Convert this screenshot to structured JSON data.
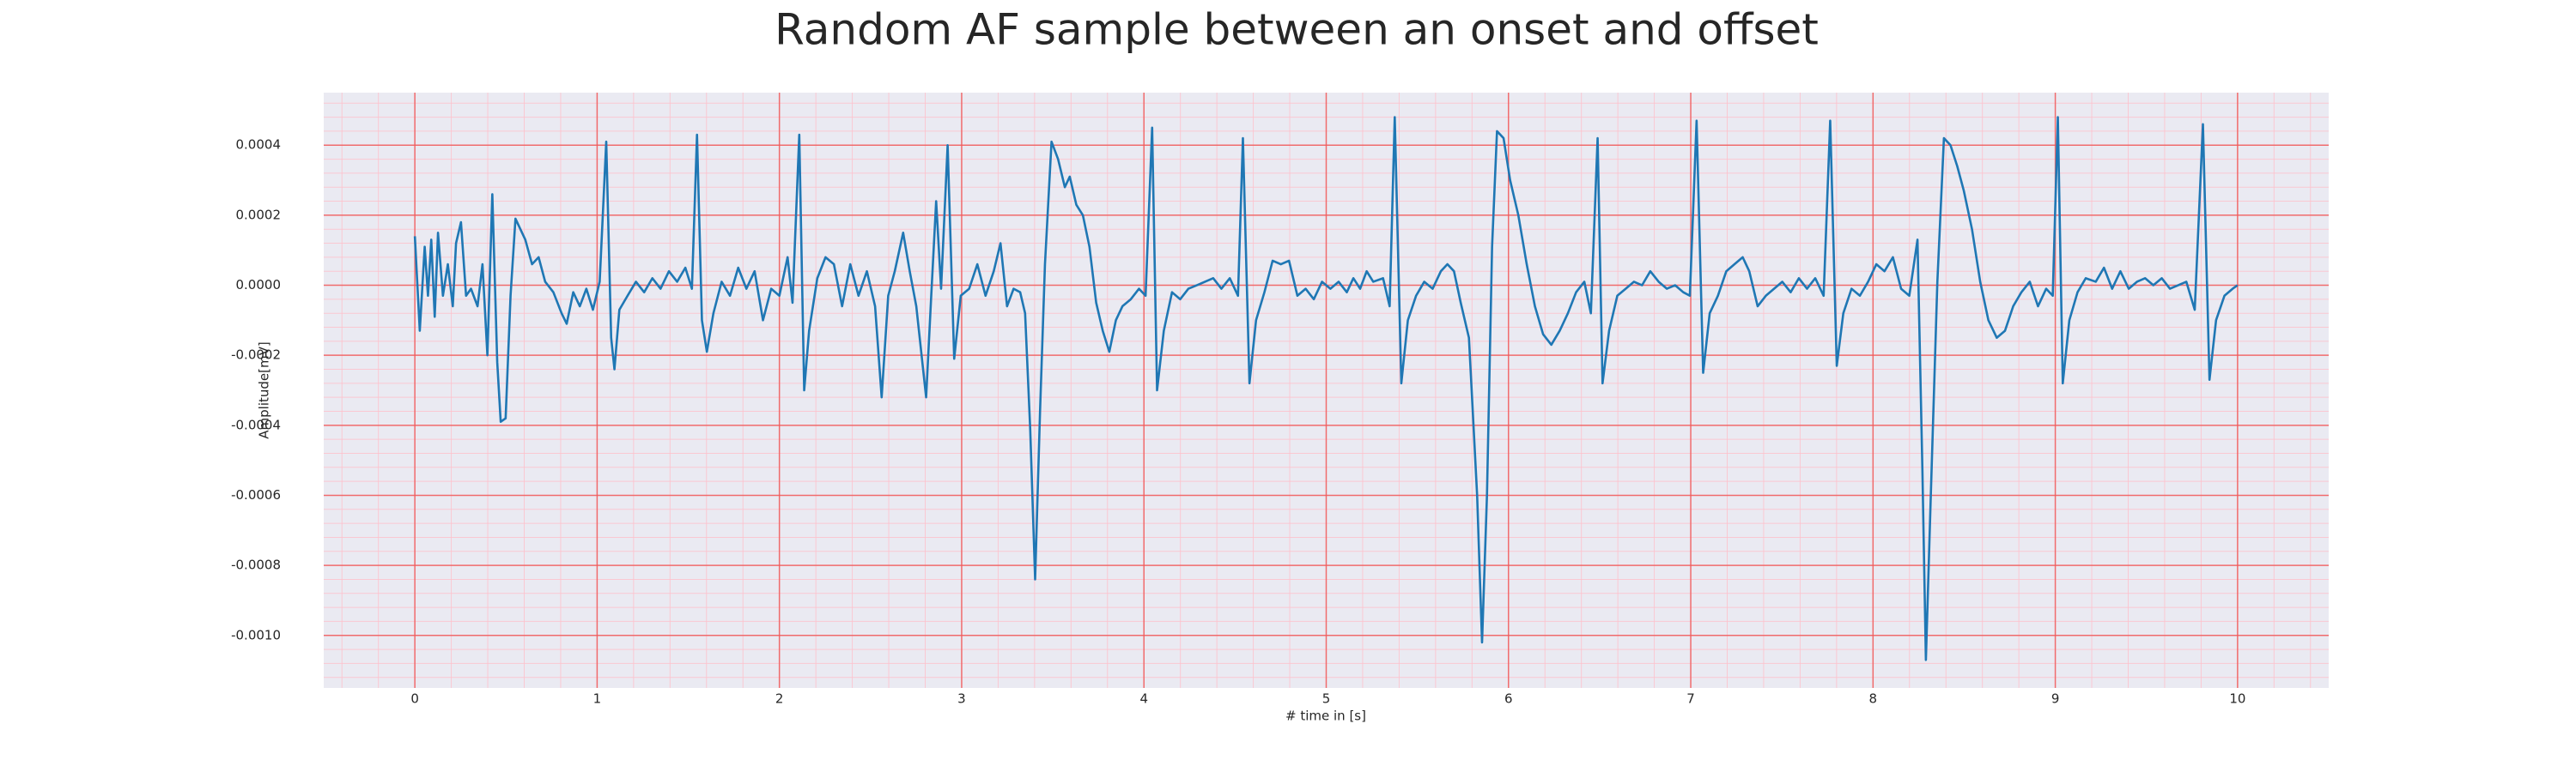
{
  "chart_data": {
    "type": "line",
    "title": "Random AF sample between an onset and offset",
    "xlabel": "# time in [s]",
    "ylabel": "Amplitude[mV]",
    "color": "#1f77b4",
    "grid": true,
    "minor_grid_step": {
      "x": 0.2,
      "y": 4e-05
    },
    "xlim": [
      -0.5,
      10.5
    ],
    "xticks": [
      0,
      1,
      2,
      3,
      4,
      5,
      6,
      7,
      8,
      9,
      10
    ],
    "ylim": [
      -0.00115,
      0.00055
    ],
    "yticks": [
      0.0004,
      0.0002,
      {
        "value": 0,
        "label": "0.0000"
      },
      -0.0002,
      -0.0004,
      -0.0006,
      -0.0008,
      {
        "value": -0.001,
        "label": "-0.0010"
      }
    ],
    "x": [
      0,
      0.027,
      0.054,
      0.072,
      0.09,
      0.109,
      0.127,
      0.154,
      0.181,
      0.208,
      0.226,
      0.253,
      0.281,
      0.308,
      0.344,
      0.371,
      0.398,
      0.425,
      0.452,
      0.471,
      0.498,
      0.525,
      0.552,
      0.579,
      0.606,
      0.643,
      0.679,
      0.715,
      0.76,
      0.805,
      0.833,
      0.869,
      0.905,
      0.941,
      0.977,
      1.014,
      1.05,
      1.077,
      1.095,
      1.122,
      1.167,
      1.213,
      1.258,
      1.303,
      1.348,
      1.394,
      1.439,
      1.484,
      1.52,
      1.548,
      1.575,
      1.602,
      1.638,
      1.683,
      1.729,
      1.774,
      1.819,
      1.864,
      1.91,
      1.955,
      2.0,
      2.045,
      2.072,
      2.109,
      2.136,
      2.163,
      2.208,
      2.253,
      2.299,
      2.344,
      2.389,
      2.434,
      2.48,
      2.525,
      2.561,
      2.597,
      2.633,
      2.679,
      2.715,
      2.751,
      2.805,
      2.833,
      2.86,
      2.887,
      2.923,
      2.959,
      2.995,
      3.041,
      3.086,
      3.131,
      3.176,
      3.213,
      3.249,
      3.285,
      3.321,
      3.348,
      3.376,
      3.403,
      3.43,
      3.457,
      3.493,
      3.529,
      3.566,
      3.593,
      3.629,
      3.665,
      3.701,
      3.738,
      3.774,
      3.81,
      3.846,
      3.882,
      3.928,
      3.973,
      4.009,
      4.045,
      4.072,
      4.109,
      4.154,
      4.199,
      4.244,
      4.29,
      4.335,
      4.38,
      4.425,
      4.471,
      4.516,
      4.543,
      4.579,
      4.615,
      4.661,
      4.706,
      4.751,
      4.796,
      4.842,
      4.887,
      4.932,
      4.977,
      5.023,
      5.068,
      5.113,
      5.149,
      5.186,
      5.222,
      5.258,
      5.312,
      5.348,
      5.376,
      5.412,
      5.448,
      5.493,
      5.538,
      5.584,
      5.629,
      5.665,
      5.701,
      5.738,
      5.783,
      5.828,
      5.855,
      5.882,
      5.91,
      5.937,
      5.973,
      6.009,
      6.054,
      6.1,
      6.145,
      6.19,
      6.235,
      6.281,
      6.326,
      6.371,
      6.416,
      6.452,
      6.489,
      6.516,
      6.552,
      6.597,
      6.643,
      6.688,
      6.733,
      6.778,
      6.824,
      6.869,
      6.914,
      6.959,
      6.995,
      7.032,
      7.068,
      7.104,
      7.149,
      7.195,
      7.24,
      7.285,
      7.321,
      7.367,
      7.412,
      7.457,
      7.502,
      7.548,
      7.593,
      7.638,
      7.683,
      7.729,
      7.765,
      7.801,
      7.837,
      7.882,
      7.928,
      7.973,
      8.018,
      8.063,
      8.109,
      8.154,
      8.199,
      8.244,
      8.271,
      8.29,
      8.317,
      8.353,
      8.389,
      8.425,
      8.462,
      8.498,
      8.543,
      8.588,
      8.633,
      8.679,
      8.724,
      8.769,
      8.814,
      8.86,
      8.905,
      8.95,
      8.986,
      9.014,
      9.041,
      9.077,
      9.122,
      9.167,
      9.222,
      9.267,
      9.312,
      9.357,
      9.403,
      9.448,
      9.493,
      9.538,
      9.584,
      9.629,
      9.674,
      9.719,
      9.765,
      9.81,
      9.846,
      9.882,
      9.928,
      9.973,
      10.0
    ],
    "values": [
      0.00014,
      -0.00013,
      0.00011,
      -3e-05,
      0.00013,
      -9e-05,
      0.00015,
      -3e-05,
      6e-05,
      -6e-05,
      0.00012,
      0.00018,
      -3e-05,
      -1e-05,
      -6e-05,
      6e-05,
      -0.0002,
      0.00026,
      -0.00022,
      -0.00039,
      -0.00038,
      -3e-05,
      0.00019,
      0.00016,
      0.00013,
      6e-05,
      8e-05,
      1e-05,
      -2e-05,
      -8e-05,
      -0.00011,
      -2e-05,
      -6e-05,
      -1e-05,
      -7e-05,
      1e-05,
      0.00041,
      -0.00015,
      -0.00024,
      -7e-05,
      -3e-05,
      1e-05,
      -2e-05,
      2e-05,
      -1e-05,
      4e-05,
      1e-05,
      5e-05,
      -1e-05,
      0.00043,
      -0.0001,
      -0.00019,
      -8e-05,
      1e-05,
      -3e-05,
      5e-05,
      -1e-05,
      4e-05,
      -0.0001,
      -1e-05,
      -3e-05,
      8e-05,
      -5e-05,
      0.00043,
      -0.0003,
      -0.00013,
      2e-05,
      8e-05,
      6e-05,
      -6e-05,
      6e-05,
      -3e-05,
      4e-05,
      -6e-05,
      -0.00032,
      -3e-05,
      4e-05,
      0.00015,
      4e-05,
      -6e-05,
      -0.00032,
      -3e-05,
      0.00024,
      -1e-05,
      0.0004,
      -0.00021,
      -3e-05,
      -1e-05,
      6e-05,
      -3e-05,
      4e-05,
      0.00012,
      -6e-05,
      -1e-05,
      -2e-05,
      -8e-05,
      -0.00041,
      -0.00084,
      -0.00036,
      6e-05,
      0.00041,
      0.00036,
      0.00028,
      0.00031,
      0.00023,
      0.0002,
      0.00011,
      -5e-05,
      -0.00013,
      -0.00019,
      -0.0001,
      -6e-05,
      -4e-05,
      -1e-05,
      -3e-05,
      0.00045,
      -0.0003,
      -0.00013,
      -2e-05,
      -4e-05,
      -1e-05,
      0,
      1e-05,
      2e-05,
      -1e-05,
      2e-05,
      -3e-05,
      0.00042,
      -0.00028,
      -0.0001,
      -2e-05,
      7e-05,
      6e-05,
      7e-05,
      -3e-05,
      -1e-05,
      -4e-05,
      1e-05,
      -1e-05,
      1e-05,
      -2e-05,
      2e-05,
      -1e-05,
      4e-05,
      1e-05,
      2e-05,
      -6e-05,
      0.00048,
      -0.00028,
      -0.0001,
      -3e-05,
      1e-05,
      -1e-05,
      4e-05,
      6e-05,
      4e-05,
      -5e-05,
      -0.00015,
      -0.0006,
      -0.00102,
      -0.0006,
      0.00011,
      0.00044,
      0.00042,
      0.0003,
      0.0002,
      6e-05,
      -6e-05,
      -0.00014,
      -0.00017,
      -0.00013,
      -8e-05,
      -2e-05,
      1e-05,
      -8e-05,
      0.00042,
      -0.00028,
      -0.00013,
      -3e-05,
      -1e-05,
      1e-05,
      0,
      4e-05,
      1e-05,
      -1e-05,
      0,
      -2e-05,
      -3e-05,
      0.00047,
      -0.00025,
      -8e-05,
      -3e-05,
      4e-05,
      6e-05,
      8e-05,
      4e-05,
      -6e-05,
      -3e-05,
      -1e-05,
      1e-05,
      -2e-05,
      2e-05,
      -1e-05,
      2e-05,
      -3e-05,
      0.00047,
      -0.00023,
      -8e-05,
      -1e-05,
      -3e-05,
      1e-05,
      6e-05,
      4e-05,
      8e-05,
      -1e-05,
      -3e-05,
      0.00013,
      -0.00053,
      -0.00107,
      -0.0006,
      1e-05,
      0.00042,
      0.0004,
      0.00034,
      0.00027,
      0.00016,
      1e-05,
      -0.0001,
      -0.00015,
      -0.00013,
      -6e-05,
      -2e-05,
      1e-05,
      -6e-05,
      -1e-05,
      -3e-05,
      0.00048,
      -0.00028,
      -0.0001,
      -2e-05,
      2e-05,
      1e-05,
      5e-05,
      -1e-05,
      4e-05,
      -1e-05,
      1e-05,
      2e-05,
      0,
      2e-05,
      -1e-05,
      0,
      1e-05,
      -7e-05,
      0.00046,
      -0.00027,
      -0.0001,
      -3e-05,
      -1e-05,
      0
    ]
  }
}
